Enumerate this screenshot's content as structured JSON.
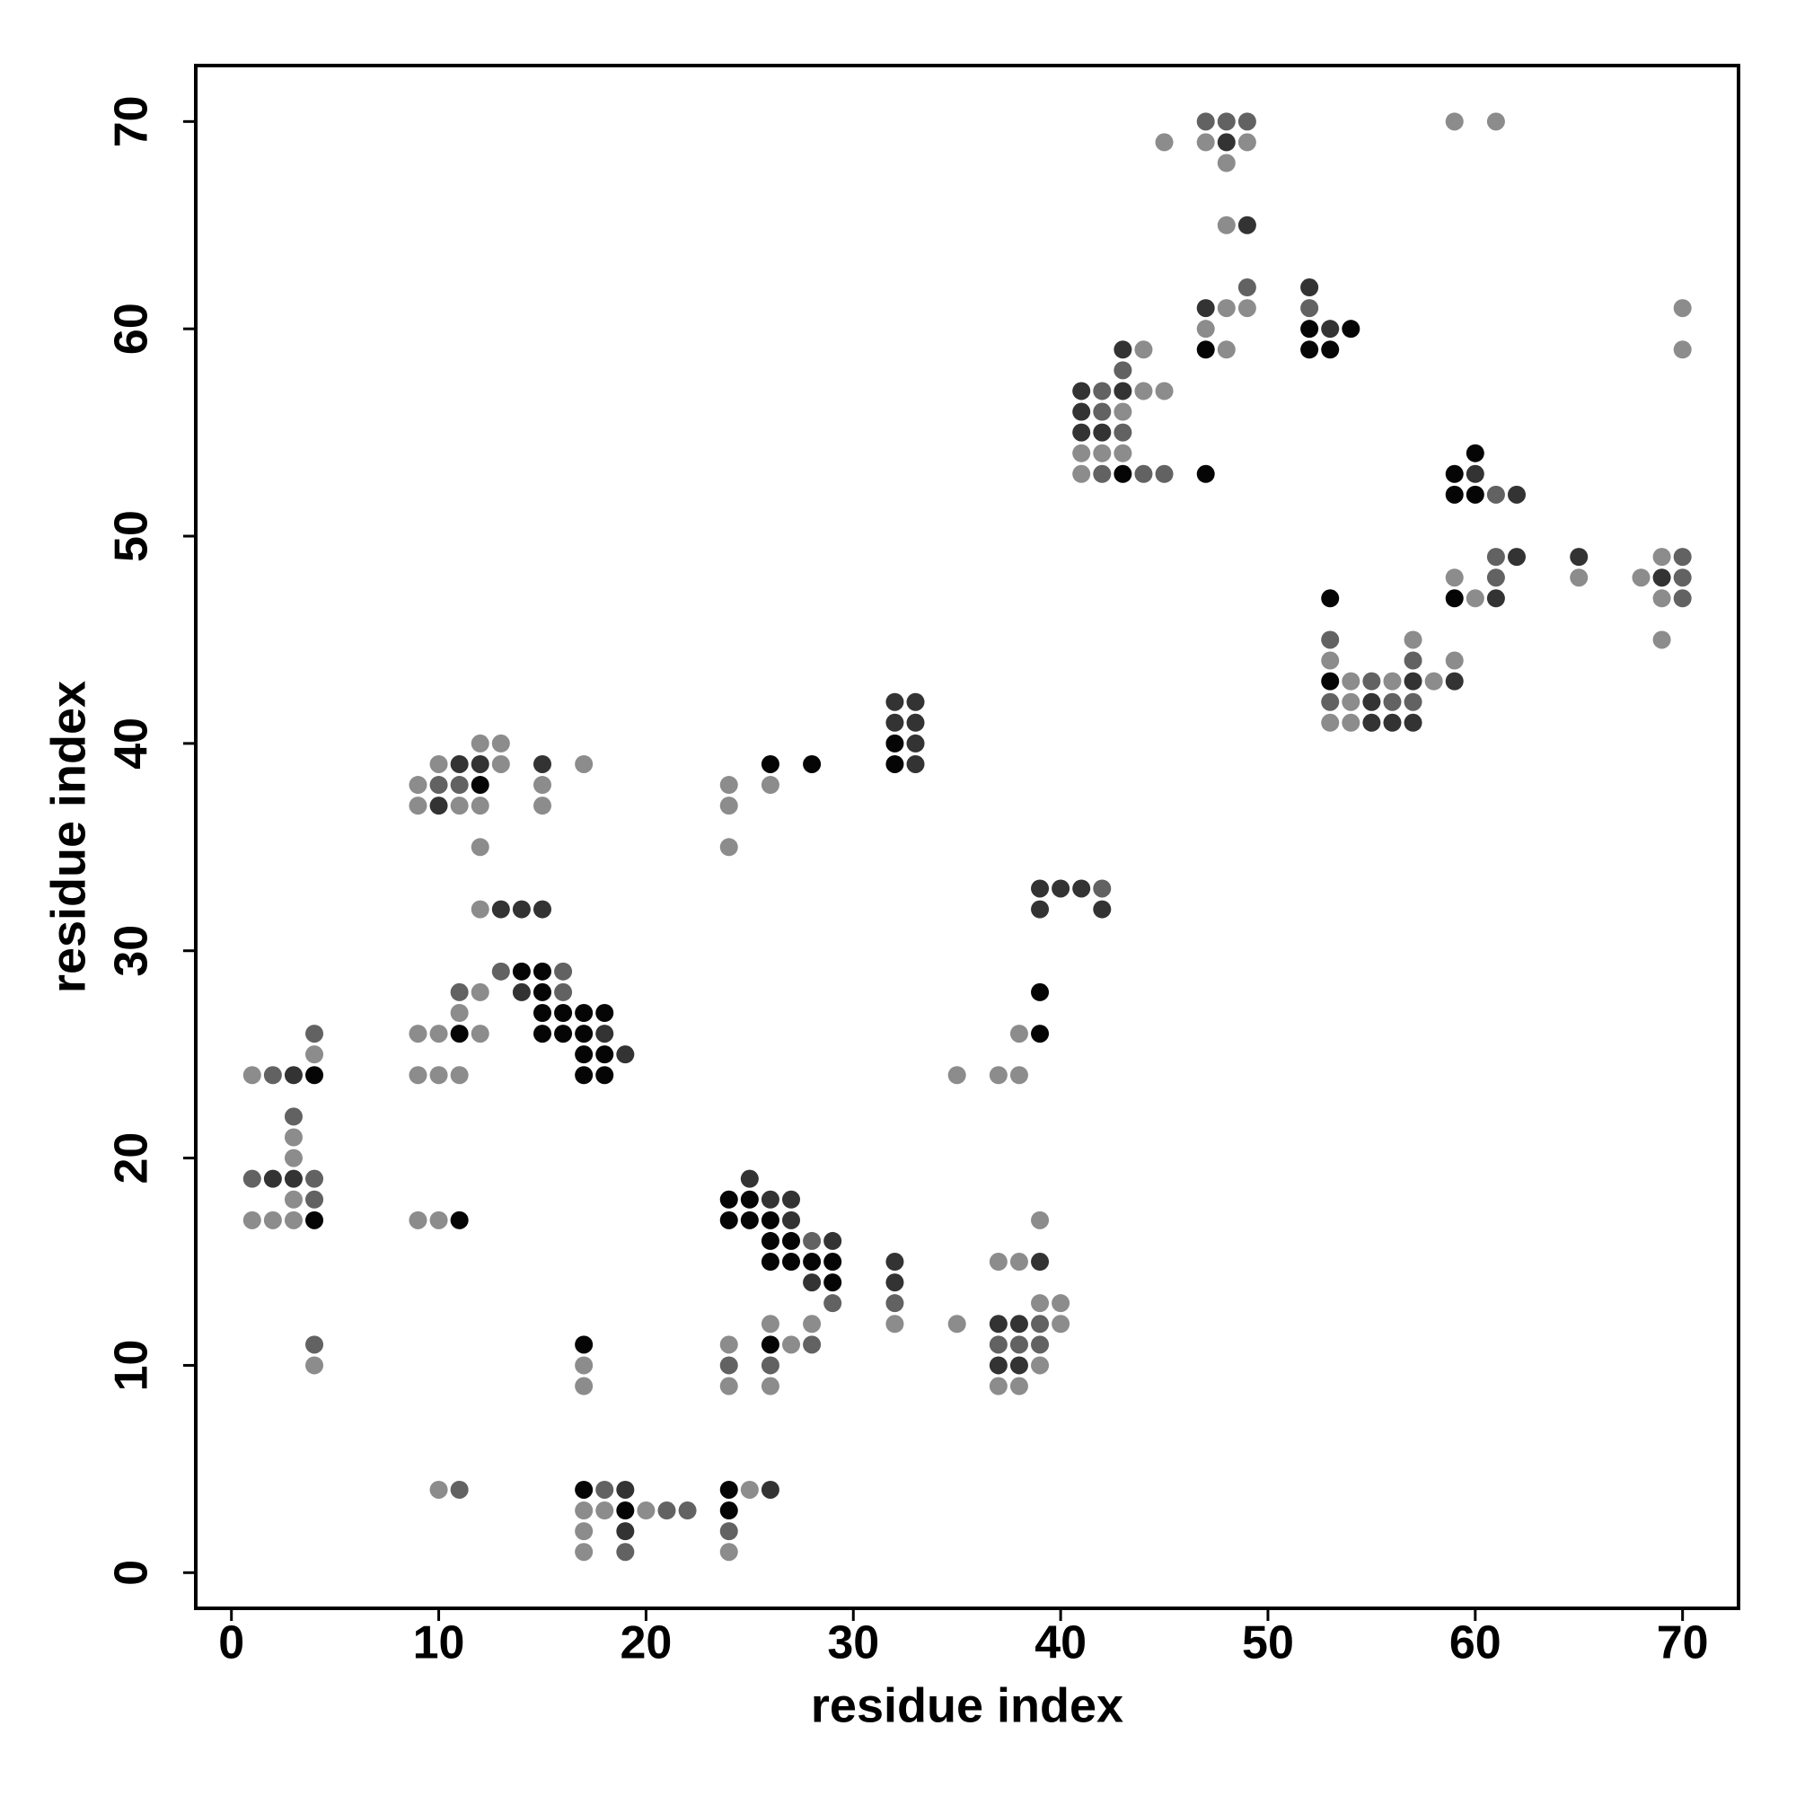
{
  "chart_data": {
    "type": "scatter",
    "xlabel": "residue index",
    "ylabel": "residue index",
    "xlim": [
      -1.72,
      72.7
    ],
    "ylim": [
      -1.72,
      72.7
    ],
    "xticks": [
      0,
      10,
      20,
      30,
      40,
      50,
      60,
      70
    ],
    "yticks": [
      0,
      10,
      20,
      30,
      40,
      50,
      60,
      70
    ],
    "grid": false,
    "series": [
      {
        "color": "#050505",
        "x": [
          47,
          52,
          53,
          52,
          54,
          43,
          47,
          59,
          60,
          59,
          60,
          53,
          59,
          53,
          32,
          32,
          26,
          28,
          12,
          14,
          15,
          15,
          39,
          15,
          16,
          17,
          18,
          11,
          15,
          16,
          17,
          39,
          17,
          18,
          4,
          17,
          18,
          24,
          25,
          4,
          11,
          24,
          25,
          26,
          26,
          27,
          26,
          27,
          28,
          29,
          29,
          17,
          26,
          17,
          24,
          19,
          24
        ],
        "y": [
          59,
          59,
          59,
          60,
          60,
          53,
          53,
          53,
          54,
          52,
          52,
          47,
          47,
          43,
          40,
          39,
          39,
          39,
          38,
          29,
          29,
          28,
          28,
          27,
          27,
          27,
          27,
          26,
          26,
          26,
          26,
          26,
          25,
          25,
          24,
          24,
          24,
          18,
          18,
          17,
          17,
          17,
          17,
          17,
          16,
          16,
          15,
          15,
          15,
          15,
          14,
          11,
          11,
          4,
          4,
          3,
          3
        ]
      },
      {
        "color": "#333333",
        "x": [
          48,
          49,
          52,
          47,
          53,
          43,
          41,
          43,
          41,
          41,
          42,
          60,
          62,
          62,
          65,
          69,
          61,
          57,
          59,
          55,
          55,
          56,
          57,
          32,
          33,
          32,
          33,
          33,
          33,
          11,
          12,
          15,
          10,
          39,
          40,
          41,
          13,
          14,
          15,
          39,
          42,
          14,
          18,
          19,
          3,
          2,
          3,
          25,
          26,
          27,
          27,
          29,
          32,
          39,
          28,
          32,
          37,
          38,
          37,
          38,
          19,
          26,
          19
        ],
        "y": [
          69,
          65,
          62,
          61,
          60,
          59,
          57,
          57,
          56,
          55,
          55,
          53,
          52,
          49,
          49,
          48,
          47,
          43,
          43,
          42,
          41,
          41,
          41,
          42,
          42,
          41,
          41,
          40,
          39,
          39,
          39,
          39,
          37,
          33,
          33,
          33,
          32,
          32,
          32,
          32,
          32,
          28,
          26,
          25,
          24,
          19,
          19,
          19,
          18,
          18,
          17,
          16,
          15,
          15,
          14,
          14,
          12,
          12,
          10,
          10,
          4,
          4,
          2
        ]
      },
      {
        "color": "#626262",
        "x": [
          47,
          48,
          49,
          49,
          52,
          43,
          42,
          42,
          43,
          42,
          44,
          45,
          61,
          61,
          70,
          61,
          70,
          70,
          53,
          57,
          53,
          56,
          57,
          55,
          10,
          11,
          42,
          13,
          16,
          11,
          16,
          4,
          2,
          3,
          1,
          4,
          4,
          28,
          29,
          32,
          39,
          4,
          28,
          37,
          38,
          39,
          24,
          26,
          11,
          18,
          21,
          22,
          24,
          19
        ],
        "y": [
          70,
          70,
          70,
          62,
          61,
          58,
          57,
          56,
          55,
          53,
          53,
          53,
          52,
          49,
          49,
          48,
          48,
          47,
          45,
          44,
          42,
          42,
          42,
          43,
          38,
          38,
          33,
          29,
          29,
          28,
          28,
          26,
          24,
          22,
          19,
          19,
          18,
          16,
          13,
          13,
          12,
          11,
          11,
          11,
          11,
          11,
          10,
          10,
          4,
          4,
          3,
          3,
          2,
          1
        ]
      },
      {
        "color": "#8c8c8c",
        "x": [
          59,
          61,
          45,
          47,
          49,
          48,
          48,
          48,
          49,
          70,
          47,
          44,
          48,
          70,
          44,
          45,
          43,
          41,
          42,
          43,
          41,
          69,
          59,
          65,
          68,
          60,
          69,
          57,
          69,
          53,
          59,
          54,
          56,
          58,
          54,
          53,
          54,
          12,
          13,
          10,
          13,
          17,
          9,
          15,
          24,
          26,
          9,
          11,
          12,
          15,
          24,
          12,
          24,
          12,
          12,
          11,
          9,
          10,
          12,
          38,
          4,
          1,
          9,
          10,
          11,
          35,
          37,
          38,
          3,
          3,
          3,
          1,
          2,
          3,
          9,
          10,
          39,
          37,
          38,
          39,
          40,
          26,
          28,
          32,
          35,
          40,
          24,
          27,
          4,
          17,
          39,
          17,
          24,
          26,
          37,
          38,
          10,
          25,
          17,
          18,
          20,
          17,
          17,
          24
        ],
        "y": [
          70,
          70,
          69,
          69,
          69,
          68,
          65,
          61,
          61,
          61,
          60,
          59,
          59,
          59,
          57,
          57,
          56,
          54,
          54,
          54,
          53,
          49,
          48,
          48,
          48,
          47,
          47,
          45,
          45,
          44,
          44,
          43,
          43,
          43,
          42,
          41,
          41,
          40,
          40,
          39,
          39,
          39,
          38,
          38,
          38,
          38,
          37,
          37,
          37,
          37,
          37,
          35,
          35,
          32,
          28,
          27,
          26,
          26,
          26,
          26,
          25,
          24,
          24,
          24,
          24,
          24,
          24,
          24,
          21,
          20,
          18,
          17,
          17,
          17,
          17,
          17,
          17,
          15,
          15,
          13,
          13,
          12,
          12,
          12,
          12,
          12,
          11,
          11,
          10,
          10,
          10,
          9,
          9,
          9,
          9,
          9,
          4,
          4,
          3,
          3,
          3,
          2,
          1,
          1
        ]
      }
    ]
  }
}
